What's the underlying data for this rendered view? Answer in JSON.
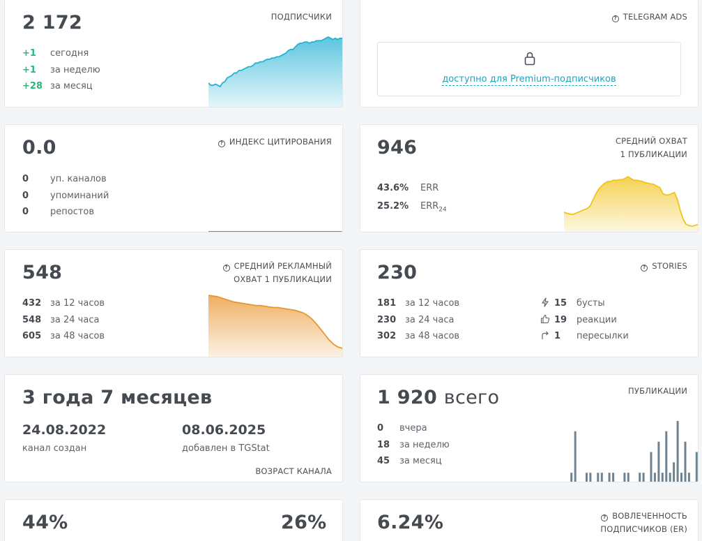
{
  "subscribers": {
    "value": "2 172",
    "label": "ПОДПИСЧИКИ",
    "rows": [
      {
        "v": "+1",
        "t": "сегодня"
      },
      {
        "v": "+1",
        "t": "за неделю"
      },
      {
        "v": "+28",
        "t": "за месяц"
      }
    ],
    "color": "#26b2d3"
  },
  "telegram_ads": {
    "label": "TELEGRAM ADS",
    "premium_link": "доступно для Premium-подписчиков"
  },
  "citation": {
    "value": "0.0",
    "label": "ИНДЕКС ЦИТИРОВАНИЯ",
    "rows": [
      {
        "v": "0",
        "t": "уп. каналов"
      },
      {
        "v": "0",
        "t": "упоминаний"
      },
      {
        "v": "0",
        "t": "репостов"
      }
    ],
    "color": "#26b28a"
  },
  "avg_reach": {
    "value": "946",
    "label_line1": "СРЕДНИЙ ОХВАТ",
    "label_line2": "1 ПУБЛИКАЦИИ",
    "err_value": "43.6%",
    "err_label": "ERR",
    "err24_value": "25.2%",
    "err24_label": "ERR",
    "err24_sub": "24",
    "color": "#f2c31a"
  },
  "ad_reach": {
    "value": "548",
    "label_line1": "СРЕДНИЙ РЕКЛАМНЫЙ",
    "label_line2": "ОХВАТ 1 ПУБЛИКАЦИИ",
    "rows": [
      {
        "v": "432",
        "t": "за 12 часов"
      },
      {
        "v": "548",
        "t": "за 24 часа"
      },
      {
        "v": "605",
        "t": "за 48 часов"
      }
    ],
    "color": "#e8962e"
  },
  "stories": {
    "value": "230",
    "label": "STORIES",
    "rows": [
      {
        "v": "181",
        "t": "за 12 часов"
      },
      {
        "v": "230",
        "t": "за 24 часа"
      },
      {
        "v": "302",
        "t": "за 48 часов"
      }
    ],
    "stats": [
      {
        "icon": "lightning-icon",
        "v": "15",
        "t": "бусты"
      },
      {
        "icon": "thumbs-up-icon",
        "v": "19",
        "t": "реакции"
      },
      {
        "icon": "share-arrow-icon",
        "v": "1",
        "t": "пересылки"
      }
    ]
  },
  "channel_age": {
    "value": "3 года 7 месяцев",
    "created_date": "24.08.2022",
    "created_label": "канал создан",
    "added_date": "08.06.2025",
    "added_label": "добавлен в TGStat",
    "label": "ВОЗРАСТ КАНАЛА"
  },
  "publications": {
    "value": "1 920",
    "value_suffix": "всего",
    "label": "ПУБЛИКАЦИИ",
    "rows": [
      {
        "v": "0",
        "t": "вчера"
      },
      {
        "v": "18",
        "t": "за неделю"
      },
      {
        "v": "45",
        "t": "за месяц"
      }
    ],
    "color": "#6e8391"
  },
  "bottom_left": {
    "value_left": "44%",
    "value_right": "26%"
  },
  "engagement": {
    "value": "6.24%",
    "label_line1": "ВОВЛЕЧЕННОСТЬ",
    "label_line2": "ПОДПИСЧИКОВ (ER)"
  },
  "chart_data": [
    {
      "type": "area",
      "name": "subscribers-sparkline",
      "values": [
        2136,
        2134,
        2134,
        2135,
        2134,
        2133,
        2136,
        2137,
        2140,
        2141,
        2142,
        2144,
        2144,
        2146,
        2146,
        2147,
        2148,
        2149,
        2149,
        2150,
        2152,
        2152,
        2153,
        2153,
        2154,
        2155,
        2155,
        2156,
        2156,
        2157,
        2157,
        2158,
        2159,
        2160,
        2162,
        2163,
        2163,
        2165,
        2167,
        2168,
        2168,
        2169,
        2169,
        2168,
        2169,
        2169,
        2170,
        2170,
        2170,
        2171,
        2172,
        2173,
        2172,
        2171,
        2172,
        2171,
        2172,
        2172
      ]
    },
    {
      "type": "area",
      "name": "avg-reach-sparkline",
      "values": [
        120,
        118,
        117,
        116,
        118,
        120,
        122,
        124,
        126,
        130,
        140,
        150,
        158,
        163,
        167,
        170,
        170,
        172,
        172,
        173,
        173,
        175,
        178,
        175,
        172,
        172,
        171,
        170,
        168,
        167,
        166,
        165,
        162,
        160,
        150,
        148,
        148,
        150,
        152,
        140,
        122,
        108,
        100,
        98,
        97,
        98,
        100
      ]
    },
    {
      "type": "area",
      "name": "ad-reach-sparkline",
      "values": [
        100,
        99,
        98,
        96,
        94,
        92,
        90,
        89,
        88,
        87,
        86,
        85,
        85,
        84,
        83,
        82,
        82,
        81,
        80,
        79,
        78,
        76,
        74,
        70,
        65,
        58,
        50,
        42,
        34,
        28,
        24,
        22
      ]
    },
    {
      "type": "bar",
      "name": "publications-sparkline",
      "values": [
        1,
        5,
        0,
        0,
        1,
        1,
        0,
        1,
        1,
        0,
        1,
        1,
        0,
        0,
        1,
        1,
        0,
        0,
        1,
        1,
        0,
        3,
        1,
        4,
        1,
        5,
        1,
        2,
        6,
        1,
        4,
        1,
        0,
        3
      ]
    }
  ]
}
